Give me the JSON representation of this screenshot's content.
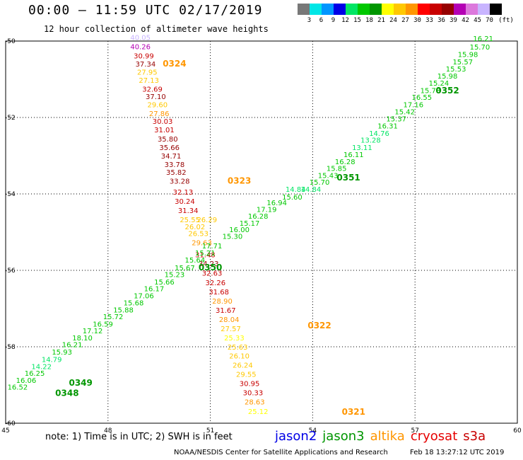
{
  "header": {
    "title": "00:00 – 11:59 UTC 02/17/2019",
    "subtitle": "12 hour collection of altimeter wave heights"
  },
  "color_scale": {
    "unit": "(ft)",
    "bins": [
      {
        "label": "3",
        "color": "#787878"
      },
      {
        "label": "6",
        "color": "#00e6e6"
      },
      {
        "label": "9",
        "color": "#0096ff"
      },
      {
        "label": "12",
        "color": "#0000e6"
      },
      {
        "label": "15",
        "color": "#00e664"
      },
      {
        "label": "18",
        "color": "#00c800"
      },
      {
        "label": "21",
        "color": "#009600"
      },
      {
        "label": "24",
        "color": "#ffff00"
      },
      {
        "label": "27",
        "color": "#ffc800"
      },
      {
        "label": "30",
        "color": "#ff9600"
      },
      {
        "label": "33",
        "color": "#ff0000"
      },
      {
        "label": "36",
        "color": "#c80000"
      },
      {
        "label": "39",
        "color": "#960000"
      },
      {
        "label": "42",
        "color": "#b400b4"
      },
      {
        "label": "45",
        "color": "#dc78dc"
      },
      {
        "label": "70",
        "color": "#c8b4ff"
      },
      {
        "label": "",
        "color": "#000000"
      }
    ]
  },
  "map": {
    "lon_ticks": [
      "45",
      "48",
      "51",
      "54",
      "57",
      "60"
    ],
    "lat_ticks": [
      "-50",
      "-52",
      "-54",
      "-56",
      "-58",
      "-60"
    ],
    "lon_range": [
      45,
      60
    ],
    "lat_range": [
      -60,
      -50
    ]
  },
  "tracks": [
    {
      "id_label": "0324",
      "id_color": "#ff9600",
      "id_lon": 49.95,
      "id_lat": -50.67,
      "points": [
        {
          "label": "40.05",
          "lon": 48.95,
          "lat": -49.97,
          "color": "#c8b4ff"
        },
        {
          "label": "40.26",
          "lon": 48.95,
          "lat": -50.21,
          "color": "#b400b4"
        },
        {
          "label": "30.99",
          "lon": 49.05,
          "lat": -50.45,
          "color": "#c80000"
        },
        {
          "label": "37.34",
          "lon": 49.1,
          "lat": -50.67,
          "color": "#960000"
        },
        {
          "label": "27.95",
          "lon": 49.15,
          "lat": -50.88,
          "color": "#ffc800"
        },
        {
          "label": "27.13",
          "lon": 49.2,
          "lat": -51.09,
          "color": "#ffc800"
        },
        {
          "label": "32.69",
          "lon": 49.3,
          "lat": -51.32,
          "color": "#c80000"
        },
        {
          "label": "37.10",
          "lon": 49.4,
          "lat": -51.52,
          "color": "#960000"
        },
        {
          "label": "29.60",
          "lon": 49.45,
          "lat": -51.73,
          "color": "#ffc800"
        },
        {
          "label": "27.86",
          "lon": 49.5,
          "lat": -51.96,
          "color": "#ff9600"
        },
        {
          "label": "30.03",
          "lon": 49.6,
          "lat": -52.17,
          "color": "#c80000"
        },
        {
          "label": "31.01",
          "lon": 49.65,
          "lat": -52.39,
          "color": "#c80000"
        },
        {
          "label": "35.80",
          "lon": 49.75,
          "lat": -52.63,
          "color": "#960000"
        },
        {
          "label": "35.66",
          "lon": 49.8,
          "lat": -52.85,
          "color": "#960000"
        },
        {
          "label": "34.71",
          "lon": 49.85,
          "lat": -53.07,
          "color": "#960000"
        },
        {
          "label": "33.78",
          "lon": 49.95,
          "lat": -53.3,
          "color": "#960000"
        },
        {
          "label": "35.82",
          "lon": 50.0,
          "lat": -53.5,
          "color": "#960000"
        },
        {
          "label": "33.28",
          "lon": 50.1,
          "lat": -53.73,
          "color": "#960000"
        }
      ]
    },
    {
      "id_label": "0323",
      "id_color": "#ff9600",
      "id_lon": 51.85,
      "id_lat": -53.73,
      "points": [
        {
          "label": "32.13",
          "lon": 50.2,
          "lat": -54.02,
          "color": "#c80000"
        },
        {
          "label": "30.24",
          "lon": 50.25,
          "lat": -54.26,
          "color": "#c80000"
        },
        {
          "label": "31.34",
          "lon": 50.35,
          "lat": -54.5,
          "color": "#c80000"
        },
        {
          "label": "25.55",
          "lon": 50.4,
          "lat": -54.74,
          "color": "#ffc800"
        },
        {
          "label": "26.29",
          "lon": 50.9,
          "lat": -54.74,
          "color": "#ffc800"
        },
        {
          "label": "26.02",
          "lon": 50.55,
          "lat": -54.93,
          "color": "#ffc800"
        },
        {
          "label": "26.53",
          "lon": 50.65,
          "lat": -55.1,
          "color": "#ffc800"
        },
        {
          "label": "29.63",
          "lon": 50.75,
          "lat": -55.34,
          "color": "#ff9600"
        },
        {
          "label": "31.48",
          "lon": 50.85,
          "lat": -55.66,
          "color": "#c80000"
        },
        {
          "label": "34.23",
          "lon": 50.95,
          "lat": -55.89,
          "color": "#960000"
        }
      ]
    },
    {
      "id_label": "0322",
      "id_color": "#ff9600",
      "id_lon": 54.2,
      "id_lat": -57.52,
      "points": [
        {
          "label": "32.63",
          "lon": 51.05,
          "lat": -56.14,
          "color": "#c80000"
        },
        {
          "label": "32.26",
          "lon": 51.15,
          "lat": -56.39,
          "color": "#c80000"
        },
        {
          "label": "31.68",
          "lon": 51.25,
          "lat": -56.63,
          "color": "#c80000"
        },
        {
          "label": "28.90",
          "lon": 51.35,
          "lat": -56.87,
          "color": "#ff9600"
        },
        {
          "label": "31.67",
          "lon": 51.45,
          "lat": -57.11,
          "color": "#c80000"
        },
        {
          "label": "28.04",
          "lon": 51.55,
          "lat": -57.35,
          "color": "#ff9600"
        },
        {
          "label": "27.57",
          "lon": 51.6,
          "lat": -57.59,
          "color": "#ffc800"
        },
        {
          "label": "25.33",
          "lon": 51.7,
          "lat": -57.83,
          "color": "#ffff00"
        },
        {
          "label": "25.63",
          "lon": 51.8,
          "lat": -58.07,
          "color": "#ffc800"
        },
        {
          "label": "26.10",
          "lon": 51.85,
          "lat": -58.31,
          "color": "#ffc800"
        },
        {
          "label": "26.24",
          "lon": 51.95,
          "lat": -58.55,
          "color": "#ffc800"
        },
        {
          "label": "29.55",
          "lon": 52.05,
          "lat": -58.79,
          "color": "#ffc800"
        },
        {
          "label": "30.95",
          "lon": 52.15,
          "lat": -59.03,
          "color": "#c80000"
        },
        {
          "label": "30.33",
          "lon": 52.25,
          "lat": -59.27,
          "color": "#c80000"
        },
        {
          "label": "28.63",
          "lon": 52.3,
          "lat": -59.51,
          "color": "#ff9600"
        },
        {
          "label": "25.12",
          "lon": 52.4,
          "lat": -59.76,
          "color": "#ffff00"
        }
      ]
    },
    {
      "id_label": "0321",
      "id_color": "#ff9600",
      "id_lon": 55.2,
      "id_lat": -59.78,
      "points": []
    },
    {
      "id_label": "0352",
      "id_color": "#009600",
      "id_lon": 57.95,
      "id_lat": -51.37,
      "points": [
        {
          "label": "16.21",
          "lon": 59.0,
          "lat": -50.0,
          "color": "#00c800"
        },
        {
          "label": "15.70",
          "lon": 58.9,
          "lat": -50.22,
          "color": "#00c800"
        },
        {
          "label": "15.98",
          "lon": 58.55,
          "lat": -50.42,
          "color": "#00c800"
        },
        {
          "label": "15.57",
          "lon": 58.4,
          "lat": -50.61,
          "color": "#00c800"
        },
        {
          "label": "15.53",
          "lon": 58.2,
          "lat": -50.8,
          "color": "#00c800"
        },
        {
          "label": "15.98",
          "lon": 57.95,
          "lat": -50.98,
          "color": "#00c800"
        },
        {
          "label": "15.24",
          "lon": 57.7,
          "lat": -51.17,
          "color": "#00c800"
        },
        {
          "label": "15.78",
          "lon": 57.45,
          "lat": -51.36,
          "color": "#00c800"
        },
        {
          "label": "16.55",
          "lon": 57.2,
          "lat": -51.54,
          "color": "#00c800"
        },
        {
          "label": "17.16",
          "lon": 56.95,
          "lat": -51.73,
          "color": "#00c800"
        },
        {
          "label": "15.42",
          "lon": 56.7,
          "lat": -51.92,
          "color": "#00c800"
        },
        {
          "label": "15.37",
          "lon": 56.45,
          "lat": -52.1,
          "color": "#00c800"
        }
      ]
    },
    {
      "id_label": "0351",
      "id_color": "#009600",
      "id_lon": 55.05,
      "id_lat": -53.65,
      "points": [
        {
          "label": "16.31",
          "lon": 56.2,
          "lat": -52.29,
          "color": "#00c800"
        },
        {
          "label": "14.76",
          "lon": 55.95,
          "lat": -52.48,
          "color": "#00e664"
        },
        {
          "label": "13.28",
          "lon": 55.7,
          "lat": -52.66,
          "color": "#00e664"
        },
        {
          "label": "13.11",
          "lon": 55.45,
          "lat": -52.85,
          "color": "#00e664"
        },
        {
          "label": "16.11",
          "lon": 55.2,
          "lat": -53.04,
          "color": "#00c800"
        },
        {
          "label": "16.28",
          "lon": 54.95,
          "lat": -53.22,
          "color": "#00c800"
        },
        {
          "label": "15.85",
          "lon": 54.7,
          "lat": -53.4,
          "color": "#00c800"
        },
        {
          "label": "15.43",
          "lon": 54.45,
          "lat": -53.58,
          "color": "#00c800"
        },
        {
          "label": "15.70",
          "lon": 54.2,
          "lat": -53.76,
          "color": "#00c800"
        },
        {
          "label": "14.84",
          "lon": 53.95,
          "lat": -53.94,
          "color": "#00e664"
        },
        {
          "label": "14.84",
          "lon": 53.5,
          "lat": -53.94,
          "color": "#00e664"
        },
        {
          "label": "15.60",
          "lon": 53.4,
          "lat": -54.15,
          "color": "#00c800"
        },
        {
          "label": "16.94",
          "lon": 52.95,
          "lat": -54.3,
          "color": "#00c800"
        },
        {
          "label": "17.19",
          "lon": 52.65,
          "lat": -54.47,
          "color": "#00c800"
        },
        {
          "label": "16.28",
          "lon": 52.4,
          "lat": -54.65,
          "color": "#00c800"
        },
        {
          "label": "15.17",
          "lon": 52.15,
          "lat": -54.83,
          "color": "#00c800"
        },
        {
          "label": "16.00",
          "lon": 51.85,
          "lat": -55.0,
          "color": "#00c800"
        },
        {
          "label": "15.30",
          "lon": 51.65,
          "lat": -55.18,
          "color": "#00c800"
        }
      ]
    },
    {
      "id_label": "0350",
      "id_color": "#009600",
      "id_lon": 51.0,
      "id_lat": -56.0,
      "points": [
        {
          "label": "17.71",
          "lon": 51.05,
          "lat": -55.43,
          "color": "#00c800"
        },
        {
          "label": "15.21",
          "lon": 50.85,
          "lat": -55.61,
          "color": "#00c800"
        },
        {
          "label": "15.64",
          "lon": 50.55,
          "lat": -55.8,
          "color": "#00c800"
        },
        {
          "label": "15.67",
          "lon": 50.25,
          "lat": -56.0,
          "color": "#00c800"
        },
        {
          "label": "15.23",
          "lon": 49.95,
          "lat": -56.18,
          "color": "#00c800"
        },
        {
          "label": "15.66",
          "lon": 49.65,
          "lat": -56.37,
          "color": "#00c800"
        },
        {
          "label": "16.17",
          "lon": 49.35,
          "lat": -56.55,
          "color": "#00c800"
        },
        {
          "label": "17.06",
          "lon": 49.05,
          "lat": -56.73,
          "color": "#00c800"
        },
        {
          "label": "15.68",
          "lon": 48.75,
          "lat": -56.92,
          "color": "#00c800"
        },
        {
          "label": "15.88",
          "lon": 48.45,
          "lat": -57.1,
          "color": "#00c800"
        },
        {
          "label": "15.72",
          "lon": 48.15,
          "lat": -57.28,
          "color": "#00c800"
        },
        {
          "label": "16.59",
          "lon": 47.85,
          "lat": -57.47,
          "color": "#00c800"
        },
        {
          "label": "17.12",
          "lon": 47.55,
          "lat": -57.65,
          "color": "#00c800"
        },
        {
          "label": "18.10",
          "lon": 47.25,
          "lat": -57.83,
          "color": "#00c800"
        },
        {
          "label": "16.21",
          "lon": 46.95,
          "lat": -58.01,
          "color": "#00c800"
        },
        {
          "label": "15.93",
          "lon": 46.65,
          "lat": -58.2,
          "color": "#00c800"
        }
      ]
    },
    {
      "id_label": "0349",
      "id_color": "#009600",
      "id_lon": 47.2,
      "id_lat": -59.02,
      "points": [
        {
          "label": "14.79",
          "lon": 46.35,
          "lat": -58.4,
          "color": "#00e664"
        },
        {
          "label": "14.22",
          "lon": 46.05,
          "lat": -58.58,
          "color": "#00e664"
        },
        {
          "label": "16.25",
          "lon": 45.85,
          "lat": -58.76,
          "color": "#00c800"
        }
      ]
    },
    {
      "id_label": "0348",
      "id_color": "#009600",
      "id_lon": 46.8,
      "id_lat": -59.29,
      "points": [
        {
          "label": "16.06",
          "lon": 45.6,
          "lat": -58.94,
          "color": "#00c800"
        },
        {
          "label": "16.52",
          "lon": 45.35,
          "lat": -59.12,
          "color": "#00c800"
        }
      ]
    }
  ],
  "footer": {
    "note": "note:  1) Time is in UTC;  2) SWH is in feet",
    "satellites": [
      {
        "label": "jason2",
        "color": "#0000e6"
      },
      {
        "label": "jason3",
        "color": "#009600"
      },
      {
        "label": "altika",
        "color": "#ff9600"
      },
      {
        "label": "cryosat",
        "color": "#e60000"
      },
      {
        "label": "s3a",
        "color": "#c80000"
      }
    ],
    "credit": "NOAA/NESDIS Center for Satellite Applications and Research",
    "timestamp": "Feb 18 13:27:12 UTC 2019"
  }
}
